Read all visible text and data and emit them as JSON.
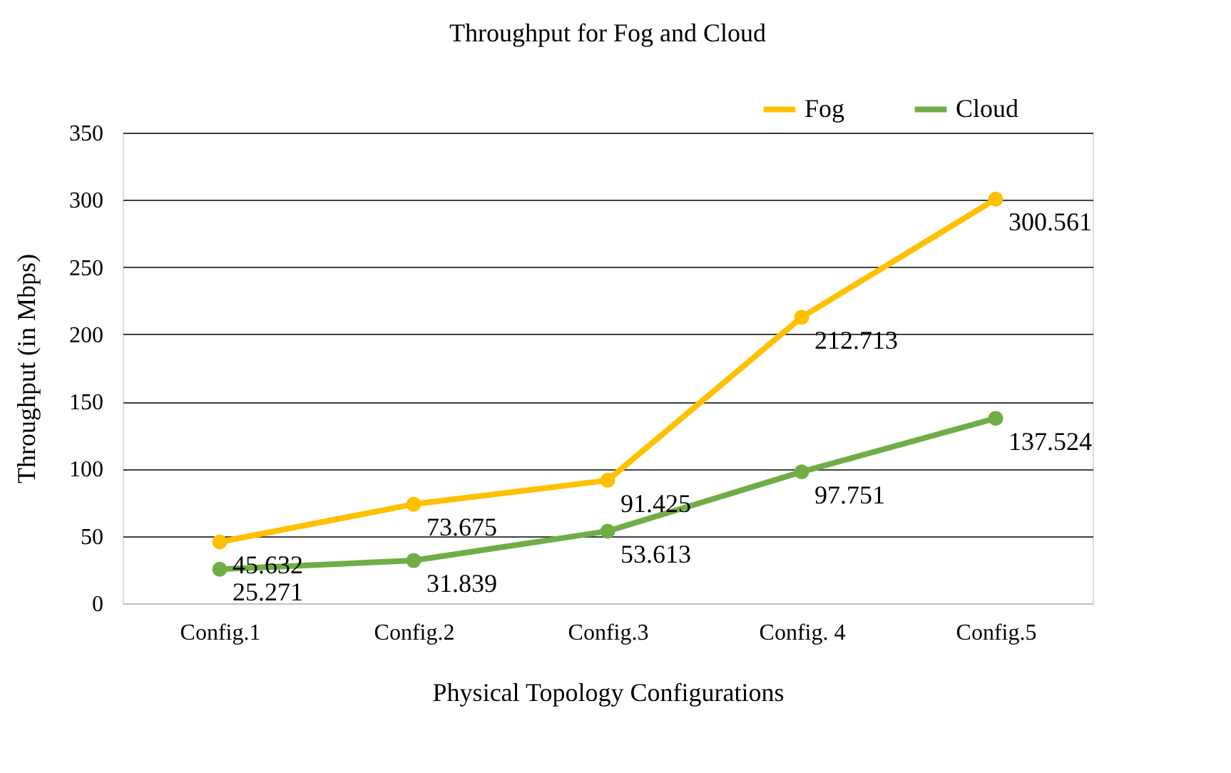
{
  "chart_data": {
    "type": "line",
    "title": "Throughput for Fog and Cloud",
    "xlabel": "Physical Topology Configurations",
    "ylabel": "Throughput (in Mbps)",
    "categories": [
      "Config.1",
      "Config.2",
      "Config.3",
      "Config. 4",
      "Config.5"
    ],
    "series": [
      {
        "name": "Fog",
        "color": "#ffc000",
        "values": [
          45.632,
          73.675,
          91.425,
          212.713,
          300.561
        ]
      },
      {
        "name": "Cloud",
        "color": "#70ad47",
        "values": [
          25.271,
          31.839,
          53.613,
          97.751,
          137.524
        ]
      }
    ],
    "ylim": [
      0,
      350
    ],
    "yticks": [
      0,
      50,
      100,
      150,
      200,
      250,
      300,
      350
    ],
    "grid": "y",
    "legend": "top right",
    "marker": "circle",
    "line_style": "solid",
    "data_labels": true
  }
}
